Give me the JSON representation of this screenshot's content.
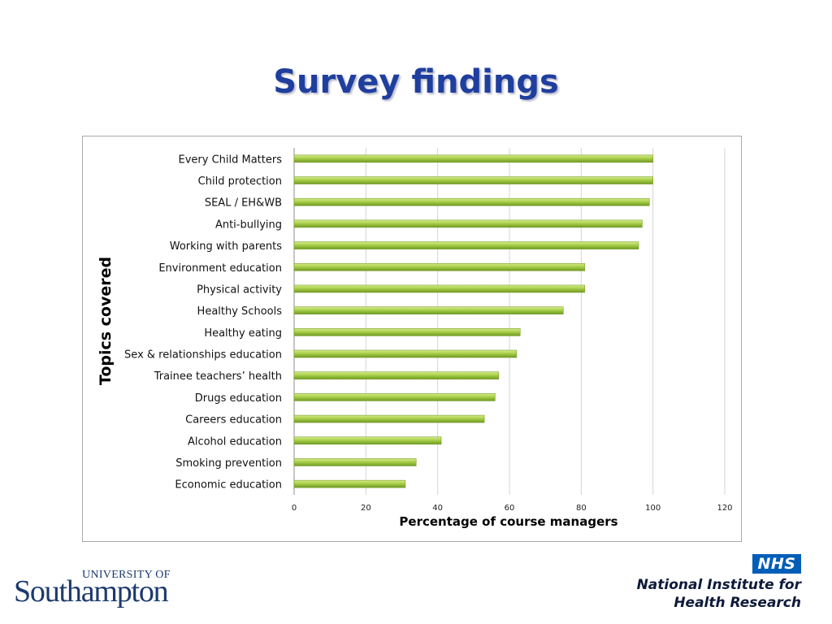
{
  "slide": {
    "title": "Survey findings"
  },
  "logos": {
    "southampton": {
      "line1": "UNIVERSITY OF",
      "line2": "Southampton"
    },
    "nihr": {
      "badge": "NHS",
      "line1": "National Institute for",
      "line2": "Health Research",
      "badge_color": "#005eb8"
    }
  },
  "chart_data": {
    "type": "bar",
    "orientation": "horizontal",
    "categories": [
      "Every Child Matters",
      "Child protection",
      "SEAL / EH&WB",
      "Anti-bullying",
      "Working with parents",
      "Environment education",
      "Physical activity",
      "Healthy Schools",
      "Healthy eating",
      "Sex & relationships education",
      "Trainee teachers’ health",
      "Drugs education",
      "Careers education",
      "Alcohol education",
      "Smoking prevention",
      "Economic education"
    ],
    "values": [
      100,
      100,
      99,
      97,
      96,
      81,
      81,
      75,
      63,
      62,
      57,
      56,
      53,
      41,
      34,
      31
    ],
    "xlabel": "Percentage of course managers",
    "ylabel": "Topics  covered",
    "xlim": [
      0,
      120
    ],
    "xticks": [
      0,
      20,
      40,
      60,
      80,
      100,
      120
    ],
    "grid": true,
    "bar_color": "#9bc43c"
  }
}
